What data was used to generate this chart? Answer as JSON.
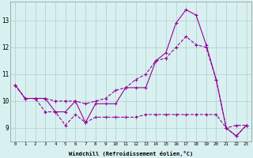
{
  "xlabel": "Windchill (Refroidissement éolien,°C)",
  "x": [
    0,
    1,
    2,
    3,
    4,
    5,
    6,
    7,
    8,
    9,
    10,
    11,
    12,
    13,
    14,
    15,
    16,
    17,
    18,
    19,
    20,
    21,
    22,
    23
  ],
  "line_spike": [
    10.6,
    10.1,
    10.1,
    10.1,
    9.6,
    9.6,
    10.0,
    9.2,
    9.9,
    9.9,
    9.9,
    10.5,
    10.5,
    10.5,
    11.5,
    11.8,
    12.9,
    13.4,
    13.2,
    12.1,
    10.8,
    9.0,
    8.7,
    9.1
  ],
  "line_diag": [
    10.6,
    10.1,
    10.1,
    10.1,
    10.0,
    10.0,
    10.0,
    9.9,
    10.0,
    10.1,
    10.4,
    10.5,
    10.8,
    11.0,
    11.5,
    11.6,
    12.0,
    12.4,
    12.1,
    12.0,
    10.8,
    9.0,
    9.1,
    9.1
  ],
  "line_flat": [
    10.6,
    10.1,
    10.1,
    9.6,
    9.6,
    9.1,
    9.5,
    9.2,
    9.4,
    9.4,
    9.4,
    9.4,
    9.4,
    9.5,
    9.5,
    9.5,
    9.5,
    9.5,
    9.5,
    9.5,
    9.5,
    9.0,
    8.7,
    9.1
  ],
  "line_color": "#990099",
  "bg_color": "#d8f0f0",
  "grid_color": "#b0cccc",
  "ylim": [
    8.5,
    13.7
  ],
  "yticks": [
    9,
    10,
    11,
    12,
    13
  ]
}
